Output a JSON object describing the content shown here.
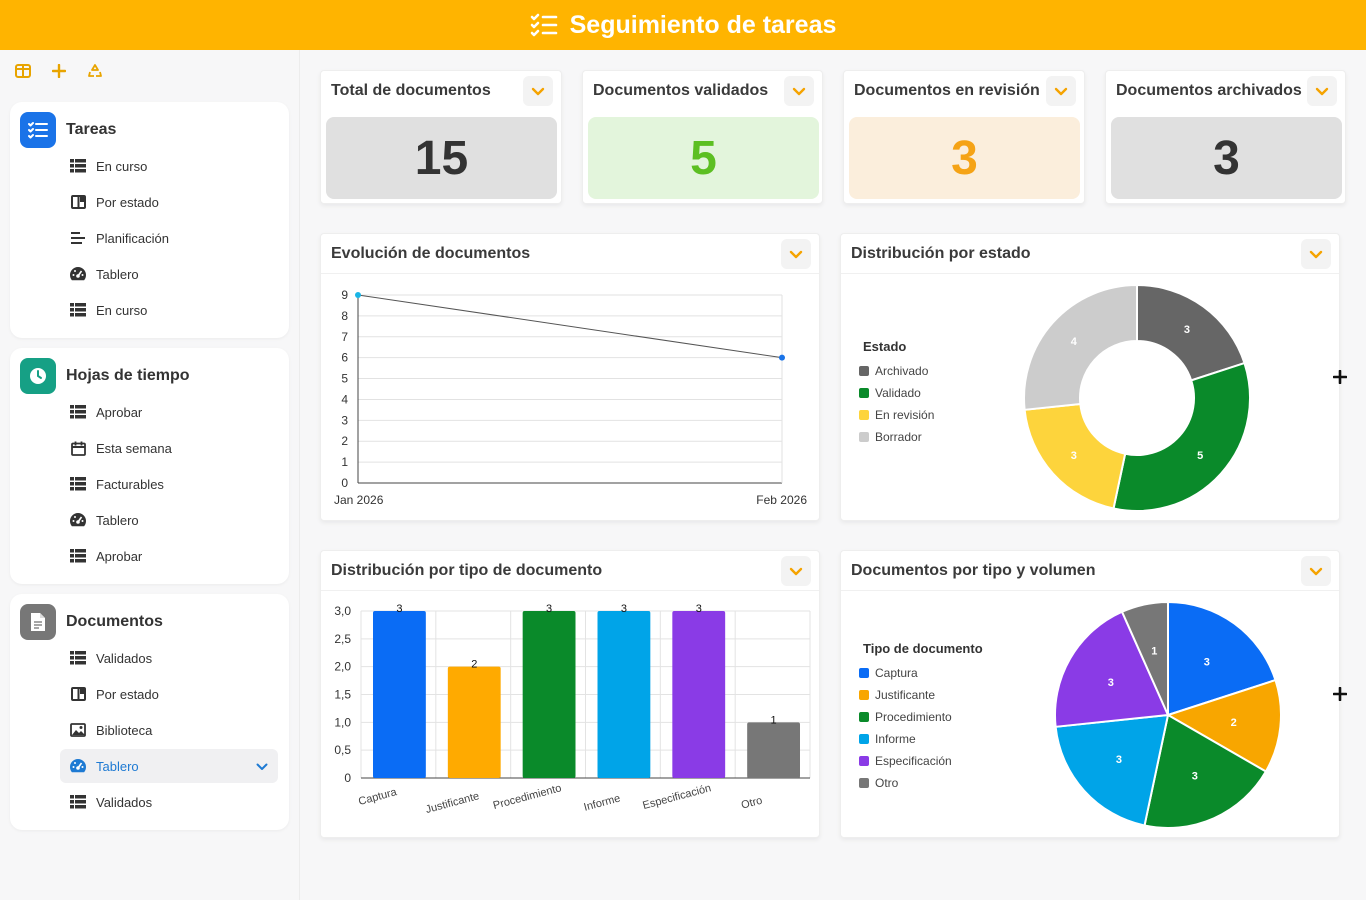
{
  "app": {
    "title": "Seguimiento de tareas"
  },
  "sidebar": {
    "groups": [
      {
        "title": "Tareas",
        "color": "#1a73e8",
        "items": [
          {
            "label": "En curso",
            "icon": "table-icon"
          },
          {
            "label": "Por estado",
            "icon": "kanban-icon"
          },
          {
            "label": "Planificación",
            "icon": "gantt-icon"
          },
          {
            "label": "Tablero",
            "icon": "dashboard-icon"
          },
          {
            "label": "En curso",
            "icon": "table-icon"
          }
        ]
      },
      {
        "title": "Hojas de tiempo",
        "color": "#16a085",
        "items": [
          {
            "label": "Aprobar",
            "icon": "table-icon"
          },
          {
            "label": "Esta semana",
            "icon": "calendar-icon"
          },
          {
            "label": "Facturables",
            "icon": "table-icon"
          },
          {
            "label": "Tablero",
            "icon": "dashboard-icon"
          },
          {
            "label": "Aprobar",
            "icon": "table-icon"
          }
        ]
      },
      {
        "title": "Documentos",
        "color": "#777777",
        "items": [
          {
            "label": "Validados",
            "icon": "table-icon"
          },
          {
            "label": "Por estado",
            "icon": "kanban-icon"
          },
          {
            "label": "Biblioteca",
            "icon": "image-icon"
          },
          {
            "label": "Tablero",
            "icon": "dashboard-icon",
            "active": true
          },
          {
            "label": "Validados",
            "icon": "table-icon"
          }
        ]
      }
    ]
  },
  "kpis": [
    {
      "title": "Total de documentos",
      "value": "15",
      "bg": "#e0e0e0",
      "fg": "#333333"
    },
    {
      "title": "Documentos validados",
      "value": "5",
      "bg": "#e3f5dc",
      "fg": "#5cbf22"
    },
    {
      "title": "Documentos en revisión",
      "value": "3",
      "bg": "#fbeedc",
      "fg": "#f5a316"
    },
    {
      "title": "Documentos archivados",
      "value": "3",
      "bg": "#e0e0e0",
      "fg": "#333333"
    }
  ],
  "panels": {
    "evolution": {
      "title": "Evolución de documentos"
    },
    "status": {
      "title": "Distribución por estado"
    },
    "doctype": {
      "title": "Distribución por tipo de documento"
    },
    "volume": {
      "title": "Documentos por tipo y volumen"
    }
  },
  "chart_data": [
    {
      "type": "line",
      "title": "Evolución de documentos",
      "x": [
        "Jan 2026",
        "Feb 2026"
      ],
      "y": [
        9,
        6
      ],
      "ylim": [
        0,
        9
      ],
      "yticks": [
        "9",
        "8",
        "7",
        "6",
        "5",
        "4",
        "3",
        "2",
        "1",
        "0"
      ],
      "grid": true
    },
    {
      "type": "pie",
      "title": "Distribución por estado",
      "donut": true,
      "legend_title": "Estado",
      "labels": [
        "Archivado",
        "Validado",
        "En revisión",
        "Borrador"
      ],
      "values": [
        3,
        5,
        3,
        4
      ],
      "colors": [
        "#666666",
        "#0a8a2a",
        "#fdd43c",
        "#cccccc"
      ]
    },
    {
      "type": "bar",
      "title": "Distribución por tipo de documento",
      "categories": [
        "Captura",
        "Justificante",
        "Procedimiento",
        "Informe",
        "Especificación",
        "Otro"
      ],
      "values": [
        3,
        2,
        3,
        3,
        3,
        1
      ],
      "colors": [
        "#0a6cf5",
        "#ffaa00",
        "#0a8a2a",
        "#00a4e8",
        "#8a3be6",
        "#777777"
      ],
      "ylim": [
        0,
        3
      ],
      "yticks": [
        "3,0",
        "2,5",
        "2,0",
        "1,5",
        "1,0",
        "0,5",
        "0"
      ],
      "grid": true
    },
    {
      "type": "pie",
      "title": "Documentos por tipo y volumen",
      "legend_title": "Tipo de documento",
      "labels": [
        "Captura",
        "Justificante",
        "Procedimiento",
        "Informe",
        "Especificación",
        "Otro"
      ],
      "values": [
        3,
        2,
        3,
        3,
        3,
        1
      ],
      "colors": [
        "#0a6cf5",
        "#f8a600",
        "#0a8a2a",
        "#00a4e8",
        "#8a3be6",
        "#777777"
      ]
    }
  ]
}
